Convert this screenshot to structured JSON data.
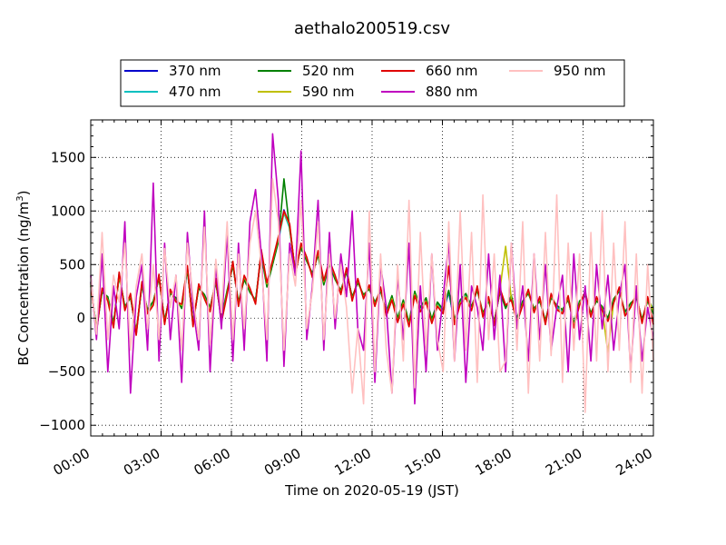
{
  "chart_data": {
    "type": "line",
    "title": "aethalo200519.csv",
    "xlabel": "Time on 2020-05-19 (JST)",
    "ylabel_main": "BC Concentration (ng/m",
    "ylabel_sup": "3",
    "ylabel_tail": ")",
    "x_unit": "hours after 2020-05-19 00:00 JST",
    "xlim": [
      0,
      24
    ],
    "ylim": [
      -1100,
      1850
    ],
    "x_ticks": [
      0,
      3,
      6,
      9,
      12,
      15,
      18,
      21,
      24
    ],
    "x_tick_labels": [
      "00:00",
      "03:00",
      "06:00",
      "09:00",
      "12:00",
      "15:00",
      "18:00",
      "21:00",
      "24:00"
    ],
    "y_ticks": [
      -1000,
      -500,
      0,
      500,
      1000,
      1500
    ],
    "y_tick_labels": [
      "−1000",
      "−500",
      "0",
      "500",
      "1000",
      "1500"
    ],
    "grid": true,
    "legend_position": "top-center, above plot",
    "series": [
      {
        "name": "370 nm",
        "color": "#0000cc",
        "values": [
          340,
          -120,
          260,
          180,
          -70,
          420,
          90,
          210,
          -150,
          320,
          60,
          140,
          390,
          -40,
          250,
          170,
          110,
          470,
          -60,
          300,
          200,
          80,
          350,
          -20,
          240,
          510,
          130,
          380,
          260,
          150,
          620,
          310,
          520,
          740,
          1010,
          860,
          420,
          680,
          550,
          400,
          610,
          330,
          520,
          380,
          240,
          450,
          180,
          350,
          200,
          290,
          130,
          270,
          40,
          190,
          -20,
          150,
          -60,
          230,
          80,
          170,
          -30,
          130,
          60,
          240,
          -40,
          150,
          210,
          90,
          280,
          30,
          180,
          -50,
          260,
          110,
          190,
          -20,
          140,
          250,
          70,
          180,
          -40,
          210,
          100,
          60,
          190,
          -70,
          140,
          230,
          30,
          180,
          90,
          -20,
          160,
          270,
          40,
          120,
          210,
          -30,
          180,
          80
        ]
      },
      {
        "name": "470 nm",
        "color": "#00bfbf",
        "values": [
          320,
          -100,
          250,
          190,
          -60,
          400,
          100,
          200,
          -130,
          310,
          70,
          150,
          380,
          -30,
          240,
          180,
          100,
          460,
          -50,
          290,
          210,
          90,
          340,
          -10,
          250,
          500,
          140,
          370,
          250,
          160,
          600,
          300,
          510,
          720,
          980,
          840,
          430,
          670,
          540,
          410,
          600,
          320,
          510,
          370,
          250,
          440,
          190,
          340,
          210,
          280,
          140,
          260,
          50,
          200,
          -10,
          160,
          -50,
          240,
          90,
          180,
          -20,
          140,
          70,
          250,
          -30,
          160,
          220,
          100,
          270,
          40,
          170,
          -40,
          250,
          100,
          200,
          -10,
          150,
          240,
          80,
          170,
          -30,
          200,
          110,
          70,
          180,
          -60,
          150,
          220,
          40,
          170,
          100,
          -10,
          170,
          260,
          50,
          130,
          200,
          -20,
          170,
          90
        ]
      },
      {
        "name": "520 nm",
        "color": "#008000",
        "values": [
          300,
          -90,
          240,
          200,
          -50,
          390,
          110,
          190,
          -120,
          300,
          80,
          160,
          370,
          -20,
          230,
          190,
          90,
          450,
          -40,
          280,
          220,
          100,
          330,
          0,
          260,
          490,
          150,
          360,
          240,
          170,
          590,
          290,
          500,
          710,
          1300,
          830,
          440,
          660,
          530,
          420,
          590,
          310,
          500,
          360,
          260,
          430,
          200,
          330,
          220,
          270,
          150,
          250,
          60,
          210,
          0,
          170,
          -40,
          250,
          100,
          190,
          -10,
          150,
          80,
          260,
          -20,
          170,
          230,
          110,
          260,
          50,
          160,
          -30,
          240,
          90,
          210,
          0,
          160,
          230,
          90,
          160,
          -20,
          190,
          120,
          80,
          170,
          -50,
          160,
          210,
          50,
          160,
          110,
          0,
          180,
          250,
          60,
          140,
          190,
          -10,
          160,
          40
        ]
      },
      {
        "name": "590 nm",
        "color": "#bfbf00",
        "values": [
          310,
          -110,
          270,
          170,
          -80,
          410,
          80,
          220,
          -140,
          330,
          50,
          130,
          400,
          -50,
          260,
          160,
          120,
          480,
          -70,
          310,
          190,
          70,
          360,
          -30,
          230,
          520,
          120,
          390,
          270,
          140,
          630,
          320,
          530,
          750,
          990,
          870,
          410,
          690,
          560,
          390,
          620,
          340,
          530,
          390,
          230,
          460,
          170,
          360,
          190,
          300,
          120,
          280,
          30,
          180,
          -30,
          140,
          -70,
          220,
          70,
          160,
          -40,
          120,
          50,
          490,
          -50,
          140,
          200,
          80,
          290,
          20,
          190,
          -60,
          270,
          670,
          180,
          -30,
          130,
          260,
          60,
          190,
          -50,
          220,
          90,
          50,
          200,
          -80,
          130,
          240,
          20,
          190,
          80,
          -320,
          150,
          280,
          30,
          110,
          220,
          -40,
          190,
          70
        ]
      },
      {
        "name": "660 nm",
        "color": "#e00000",
        "values": [
          330,
          -130,
          280,
          160,
          -90,
          430,
          70,
          230,
          -160,
          340,
          40,
          120,
          410,
          -60,
          270,
          150,
          130,
          490,
          -80,
          320,
          180,
          60,
          370,
          -40,
          220,
          530,
          110,
          400,
          280,
          130,
          640,
          330,
          540,
          760,
          1000,
          880,
          400,
          700,
          570,
          380,
          630,
          350,
          540,
          400,
          220,
          470,
          160,
          370,
          180,
          310,
          110,
          290,
          20,
          170,
          -40,
          130,
          -80,
          210,
          60,
          150,
          -50,
          110,
          40,
          480,
          -60,
          130,
          190,
          70,
          300,
          10,
          200,
          -70,
          280,
          120,
          170,
          -40,
          120,
          270,
          50,
          200,
          -60,
          230,
          80,
          40,
          210,
          -90,
          120,
          250,
          10,
          200,
          70,
          -30,
          140,
          290,
          20,
          100,
          230,
          -50,
          200,
          -60
        ]
      },
      {
        "name": "880 nm",
        "color": "#bf00bf",
        "values": [
          400,
          -200,
          600,
          -500,
          300,
          -100,
          900,
          -700,
          200,
          500,
          -300,
          1260,
          -400,
          700,
          -200,
          400,
          -600,
          800,
          100,
          -300,
          1000,
          -500,
          500,
          -100,
          800,
          -400,
          700,
          -300,
          900,
          1200,
          600,
          -400,
          1720,
          1100,
          -450,
          700,
          400,
          1560,
          -200,
          300,
          1100,
          -300,
          800,
          -100,
          600,
          200,
          1000,
          -100,
          -300,
          700,
          -600,
          500,
          100,
          -700,
          400,
          -200,
          700,
          -800,
          300,
          -500,
          600,
          -300,
          200,
          700,
          -400,
          500,
          -600,
          300,
          100,
          -300,
          600,
          -200,
          400,
          -500,
          700,
          -100,
          300,
          -400,
          600,
          -200,
          500,
          -300,
          100,
          400,
          -500,
          600,
          -200,
          300,
          -400,
          500,
          -100,
          400,
          -300,
          200,
          500,
          -500,
          300,
          -400,
          100,
          -200
        ]
      },
      {
        "name": "950 nm",
        "color": "#ffc0c0",
        "values": [
          380,
          -150,
          800,
          -200,
          400,
          150,
          700,
          -300,
          300,
          600,
          -100,
          500,
          -200,
          650,
          100,
          400,
          -300,
          700,
          200,
          -200,
          850,
          -250,
          550,
          50,
          900,
          -200,
          600,
          -100,
          700,
          1000,
          500,
          -200,
          1300,
          900,
          -300,
          600,
          300,
          1100,
          -100,
          250,
          900,
          -200,
          600,
          0,
          500,
          100,
          -700,
          -100,
          -800,
          1000,
          -500,
          600,
          -300,
          -700,
          500,
          -400,
          1100,
          -650,
          800,
          -300,
          600,
          -200,
          -500,
          900,
          -400,
          1000,
          -300,
          800,
          -600,
          1150,
          -200,
          600,
          -500,
          -400,
          700,
          -300,
          900,
          -700,
          600,
          -400,
          800,
          -350,
          1150,
          -600,
          700,
          -300,
          600,
          -880,
          800,
          -400,
          1000,
          -500,
          700,
          -300,
          900,
          -600,
          600,
          -700,
          500,
          -400
        ]
      }
    ]
  }
}
